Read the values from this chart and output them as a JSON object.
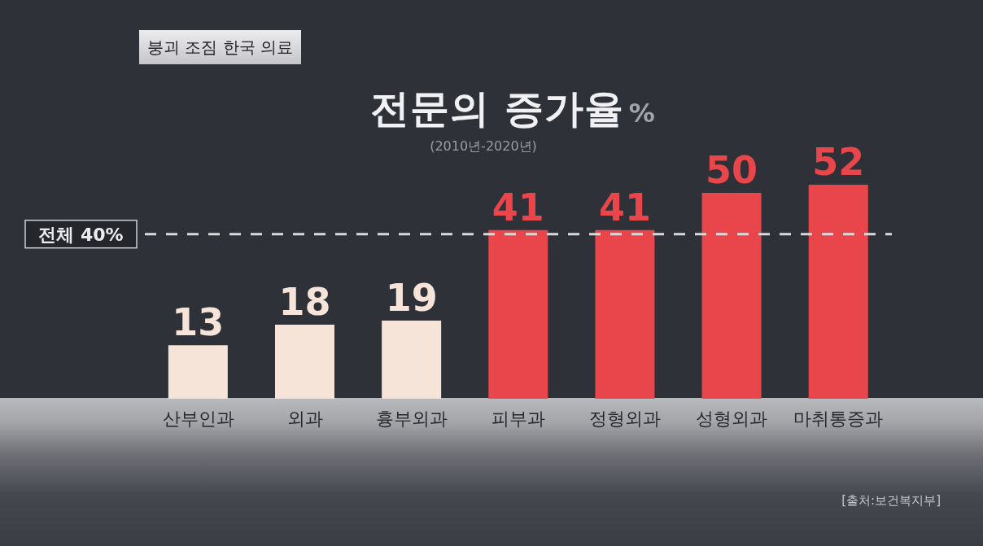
{
  "chart_data": {
    "type": "bar",
    "title": "전문의 증가율",
    "ylabel": "%",
    "subtitle": "(2010년-2020년)",
    "categories": [
      "산부인과",
      "외과",
      "흉부외과",
      "피부과",
      "정형외과",
      "성형외과",
      "마취통증과"
    ],
    "values": [
      13,
      18,
      19,
      41,
      41,
      50,
      52
    ],
    "colors": [
      "#f6e4d8",
      "#f6e4d8",
      "#f6e4d8",
      "#e8464a",
      "#e8464a",
      "#e8464a",
      "#e8464a"
    ],
    "data_labels": true,
    "ref_lines": [
      {
        "axis": "y",
        "value": 40,
        "label": "전체 40%",
        "color": "#d9d9dc",
        "line_style": "dashed"
      }
    ],
    "annotations": [
      "붕괴 조짐 한국 의료",
      "[출처:보건복지부]"
    ]
  }
}
